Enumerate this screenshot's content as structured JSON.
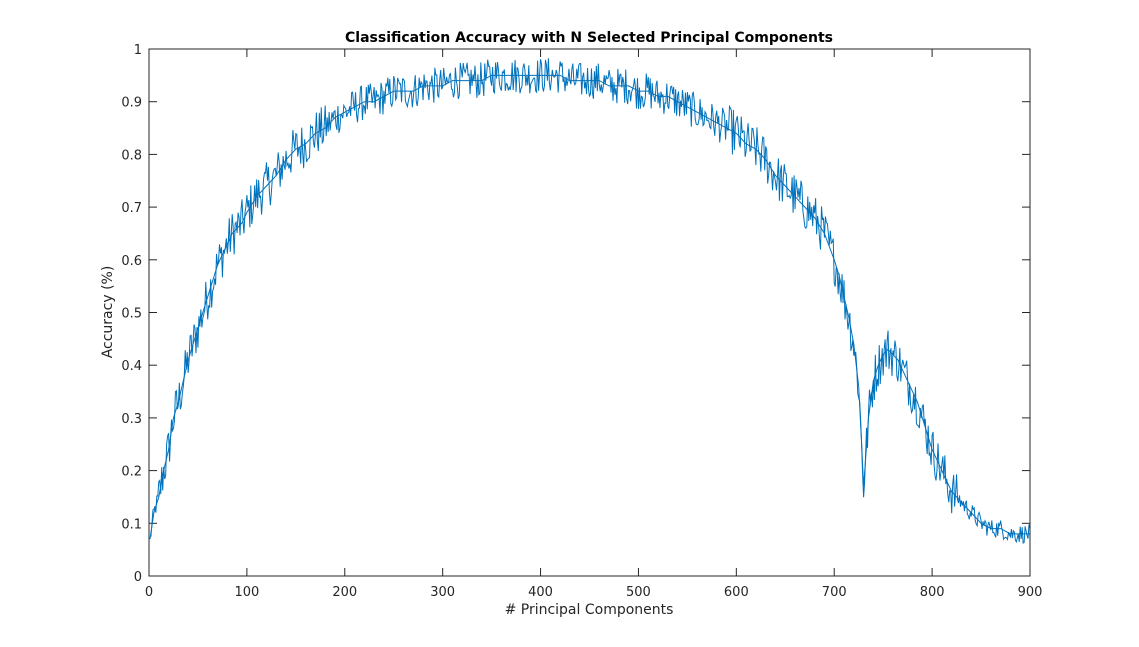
{
  "chart_data": {
    "type": "line",
    "title": "Classification Accuracy with N Selected Principal Components",
    "xlabel": "# Principal Components",
    "ylabel": "Accuracy (%)",
    "xlim": [
      0,
      900
    ],
    "ylim": [
      0,
      1
    ],
    "xticks": [
      0,
      100,
      200,
      300,
      400,
      500,
      600,
      700,
      800,
      900
    ],
    "yticks": [
      0,
      0.1,
      0.2,
      0.3,
      0.4,
      0.5,
      0.6,
      0.7,
      0.8,
      0.9,
      1
    ],
    "xtick_labels": [
      "0",
      "100",
      "200",
      "300",
      "400",
      "500",
      "600",
      "700",
      "800",
      "900"
    ],
    "ytick_labels": [
      "0",
      "0.1",
      "0.2",
      "0.3",
      "0.4",
      "0.5",
      "0.6",
      "0.7",
      "0.8",
      "0.9",
      "1"
    ],
    "grid": false,
    "box": true,
    "series": [
      {
        "color": "#0072BD",
        "x": [
          1,
          5,
          10,
          15,
          20,
          25,
          30,
          35,
          40,
          45,
          50,
          55,
          60,
          65,
          70,
          75,
          80,
          85,
          90,
          95,
          100,
          110,
          120,
          130,
          140,
          150,
          160,
          170,
          180,
          190,
          200,
          210,
          220,
          230,
          240,
          250,
          260,
          270,
          280,
          290,
          300,
          310,
          320,
          330,
          340,
          350,
          360,
          370,
          380,
          390,
          400,
          410,
          420,
          430,
          440,
          450,
          460,
          470,
          480,
          490,
          500,
          510,
          520,
          530,
          540,
          550,
          560,
          570,
          580,
          590,
          600,
          610,
          620,
          630,
          640,
          650,
          660,
          670,
          680,
          690,
          700,
          705,
          710,
          715,
          720,
          725,
          728,
          730,
          732,
          735,
          740,
          745,
          750,
          755,
          760,
          765,
          770,
          775,
          780,
          785,
          790,
          795,
          800,
          805,
          810,
          815,
          820,
          825,
          830,
          840,
          850,
          860,
          870,
          880,
          890,
          900
        ],
        "y": [
          0.07,
          0.12,
          0.15,
          0.2,
          0.24,
          0.3,
          0.33,
          0.37,
          0.41,
          0.44,
          0.47,
          0.5,
          0.53,
          0.56,
          0.59,
          0.61,
          0.63,
          0.65,
          0.66,
          0.67,
          0.69,
          0.72,
          0.74,
          0.76,
          0.79,
          0.81,
          0.82,
          0.84,
          0.85,
          0.87,
          0.88,
          0.89,
          0.9,
          0.9,
          0.91,
          0.92,
          0.92,
          0.92,
          0.93,
          0.93,
          0.93,
          0.94,
          0.94,
          0.94,
          0.94,
          0.95,
          0.95,
          0.95,
          0.95,
          0.95,
          0.95,
          0.95,
          0.95,
          0.94,
          0.94,
          0.94,
          0.94,
          0.93,
          0.93,
          0.93,
          0.92,
          0.92,
          0.91,
          0.91,
          0.9,
          0.89,
          0.88,
          0.87,
          0.86,
          0.85,
          0.84,
          0.82,
          0.81,
          0.79,
          0.76,
          0.74,
          0.72,
          0.7,
          0.68,
          0.65,
          0.6,
          0.57,
          0.53,
          0.49,
          0.44,
          0.36,
          0.25,
          0.17,
          0.22,
          0.3,
          0.37,
          0.4,
          0.42,
          0.43,
          0.42,
          0.41,
          0.39,
          0.37,
          0.35,
          0.33,
          0.3,
          0.27,
          0.24,
          0.22,
          0.2,
          0.18,
          0.16,
          0.15,
          0.14,
          0.12,
          0.1,
          0.09,
          0.09,
          0.08,
          0.08,
          0.08
        ]
      }
    ]
  }
}
